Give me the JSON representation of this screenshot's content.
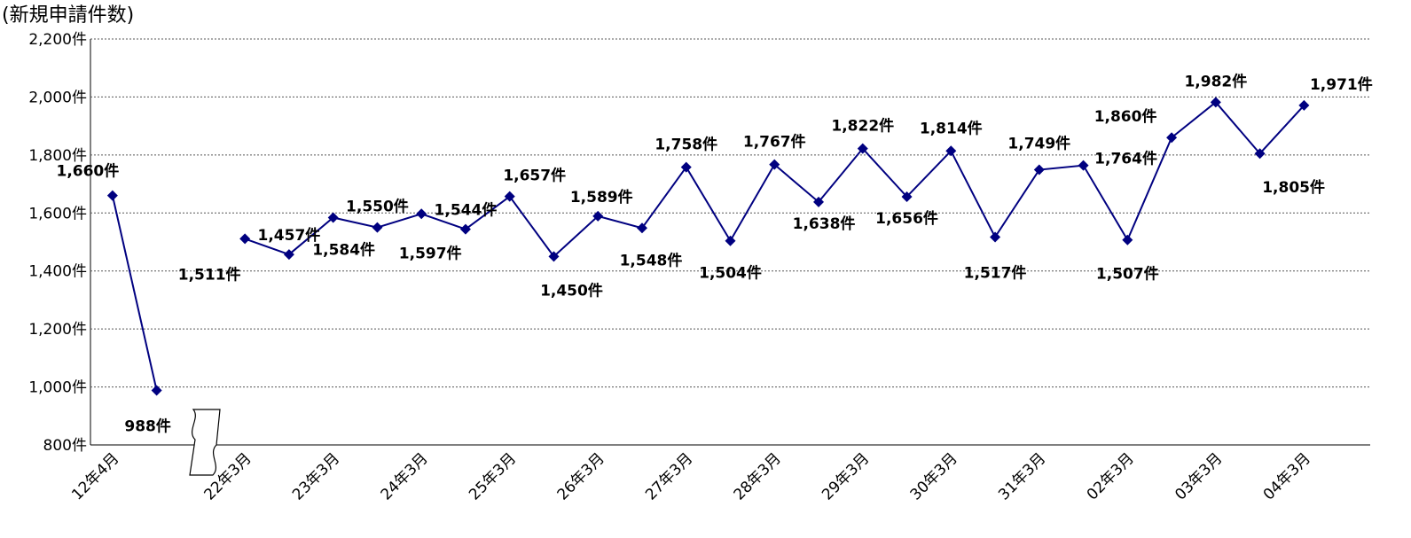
{
  "chart_data": {
    "type": "line",
    "y_axis_label": "(新規申請件数)",
    "categories": [
      "12年4月",
      null,
      null,
      "22年3月",
      null,
      "23年3月",
      null,
      "24年3月",
      null,
      "25年3月",
      null,
      "26年3月",
      null,
      "27年3月",
      null,
      "28年3月",
      null,
      "29年3月",
      null,
      "30年3月",
      null,
      "31年3月",
      null,
      "02年3月",
      null,
      "03年3月",
      null,
      "04年3月",
      null
    ],
    "series": [
      {
        "color": "#000080",
        "values": [
          1660,
          988,
          null,
          1511,
          1457,
          1584,
          1550,
          1597,
          1544,
          1657,
          1450,
          1589,
          1548,
          1758,
          1504,
          1767,
          1638,
          1822,
          1656,
          1814,
          1517,
          1749,
          1764,
          1507,
          1860,
          1982,
          1805,
          1971,
          null
        ],
        "value_labels": [
          "1,660件",
          "988件",
          null,
          "1,511件",
          "1,457件",
          "1,584件",
          "1,550件",
          "1,597件",
          "1,544件",
          "1,657件",
          "1,450件",
          "1,589件",
          "1,548件",
          "1,758件",
          "1,504件",
          "1,767件",
          "1,638件",
          "1,822件",
          "1,656件",
          "1,814件",
          "1,517件",
          "1,749件",
          "1,764件",
          "1,507件",
          "1,860件",
          "1,982件",
          "1,805件",
          "1,971件",
          null
        ]
      }
    ],
    "ylim": [
      800,
      2200
    ],
    "yticks": [
      {
        "value": 800,
        "label": "800件"
      },
      {
        "value": 1000,
        "label": "1,000件"
      },
      {
        "value": 1200,
        "label": "1,200件"
      },
      {
        "value": 1400,
        "label": "1,400件"
      },
      {
        "value": 1600,
        "label": "1,600件"
      },
      {
        "value": 1800,
        "label": "1,800件"
      },
      {
        "value": 2000,
        "label": "2,000件"
      },
      {
        "value": 2200,
        "label": "2,200件"
      }
    ],
    "grid": true
  }
}
